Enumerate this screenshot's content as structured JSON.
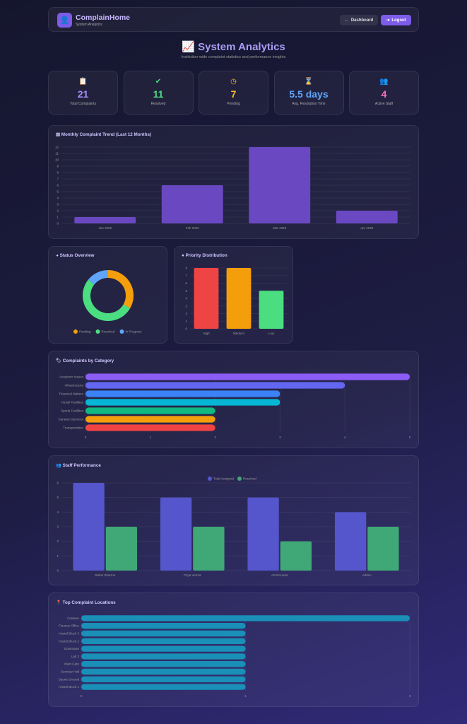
{
  "header": {
    "brand": "ComplainHome",
    "subtitle": "System Analytics",
    "dashboard_label": "Dashboard",
    "logout_label": "Logout",
    "accent": "#7c5ce8"
  },
  "page": {
    "title": "System Analytics",
    "subtitle": "Institution-wide complaint statistics and performance insights"
  },
  "stats": [
    {
      "icon": "clipboard-icon",
      "value": "21",
      "label": "Total Complaints",
      "color": "#a78bfa"
    },
    {
      "icon": "check-circle-icon",
      "value": "11",
      "label": "Resolved",
      "color": "#4ade80"
    },
    {
      "icon": "clock-icon",
      "value": "7",
      "label": "Pending",
      "color": "#fbbf24"
    },
    {
      "icon": "hourglass-icon",
      "value": "5.5 days",
      "label": "Avg. Resolution Time",
      "color": "#60a5fa"
    },
    {
      "icon": "users-icon",
      "value": "4",
      "label": "Active Staff",
      "color": "#f472b6"
    }
  ],
  "chart_data": [
    {
      "id": "monthly",
      "type": "bar",
      "title": "Monthly Complaint Trend (Last 12 Months)",
      "categories": [
        "Jan 2026",
        "Feb 2026",
        "Mar 2026",
        "Apr 2026"
      ],
      "values": [
        1,
        6,
        12,
        2
      ],
      "ylim": [
        0,
        12
      ],
      "grid": true,
      "color": "#6a48c2"
    },
    {
      "id": "status",
      "type": "pie",
      "title": "Status Overview",
      "categories": [
        "Pending",
        "Resolved",
        "In Progress"
      ],
      "values": [
        7,
        11,
        3
      ],
      "colors": [
        "#f59e0b",
        "#4ade80",
        "#60a5fa"
      ],
      "legend": "bottom"
    },
    {
      "id": "priority",
      "type": "bar",
      "title": "Priority Distribution",
      "categories": [
        "High",
        "Medium",
        "Low"
      ],
      "values": [
        8,
        8,
        5
      ],
      "ylim": [
        0,
        8
      ],
      "grid": true,
      "colors": [
        "#ef4444",
        "#f59e0b",
        "#4ade80"
      ]
    },
    {
      "id": "category",
      "type": "bar",
      "orientation": "horizontal",
      "title": "Complaints by Category",
      "categories": [
        "Academic Issues",
        "Infrastructure",
        "Financial Matters",
        "Hostel Facilities",
        "Sports Facilities",
        "Canteen Services",
        "Transportation"
      ],
      "values": [
        5,
        4,
        3,
        3,
        2,
        2,
        2
      ],
      "xlim": [
        0,
        5
      ],
      "grid": true,
      "colors": [
        "#8b5cf6",
        "#6366f1",
        "#3b82f6",
        "#06b6d4",
        "#10b981",
        "#f59e0b",
        "#ef4444"
      ]
    },
    {
      "id": "staff",
      "type": "bar",
      "title": "Staff Performance",
      "categories": [
        "Rahul Sharma",
        "Priya Verma",
        "Amit Kumar",
        "Admin"
      ],
      "series": [
        {
          "name": "Total Assigned",
          "values": [
            6,
            5,
            5,
            4
          ],
          "color": "#5555cc"
        },
        {
          "name": "Resolved",
          "values": [
            3,
            3,
            2,
            3
          ],
          "color": "#3fa876"
        }
      ],
      "ylim": [
        0,
        6
      ],
      "grid": true,
      "legend": "top"
    },
    {
      "id": "locations",
      "type": "bar",
      "orientation": "horizontal",
      "title": "Top Complaint Locations",
      "categories": [
        "Canteen",
        "Finance Office",
        "Hostel Block 3",
        "Hostel Block 2",
        "Downtown",
        "Lab 3",
        "Main Gate",
        "Seminar Hall",
        "Sports Ground",
        "Hostel Block 1"
      ],
      "values": [
        2,
        1,
        1,
        1,
        1,
        1,
        1,
        1,
        1,
        1
      ],
      "xlim": [
        0,
        2
      ],
      "grid": true,
      "color": "#1a8fb8"
    }
  ]
}
